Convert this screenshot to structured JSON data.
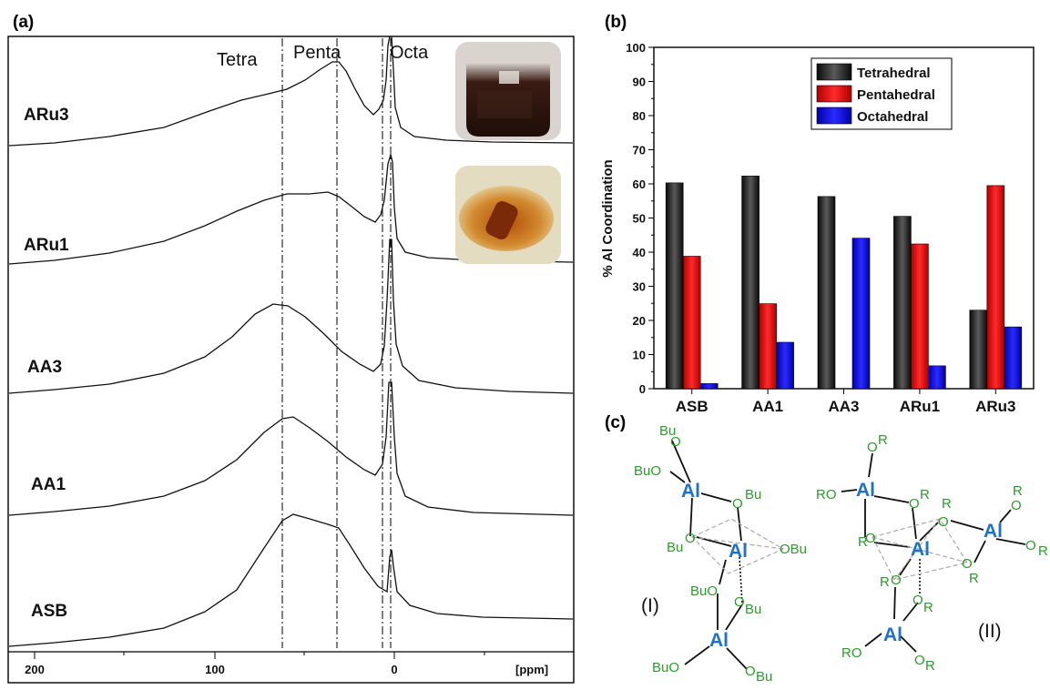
{
  "panel_labels": {
    "a": "(a)",
    "b": "(b)",
    "c": "(c)"
  },
  "nmr": {
    "region_labels": {
      "tetra": "Tetra",
      "penta": "Penta",
      "octa": "Octa"
    },
    "x_ticks": [
      "200",
      "100",
      "0"
    ],
    "x_unit": "[ppm]",
    "spectra": [
      "ARu3",
      "ARu1",
      "AA3",
      "AA1",
      "ASB"
    ]
  },
  "chart_data": {
    "type": "bar",
    "categories": [
      "ASB",
      "AA1",
      "AA3",
      "ARu1",
      "ARu3"
    ],
    "series": [
      {
        "name": "Tetrahedral",
        "values": [
          60.3,
          62.3,
          56.3,
          50.5,
          23.0
        ],
        "color": "#222222"
      },
      {
        "name": "Pentahedral",
        "values": [
          38.8,
          24.9,
          0,
          42.4,
          59.5
        ],
        "color": "#e01010"
      },
      {
        "name": "Octahedral",
        "values": [
          1.5,
          13.6,
          44.1,
          6.7,
          18.1
        ],
        "color": "#1a1ae0"
      }
    ],
    "ylabel": "% Al Coordination",
    "ylim": [
      0,
      100
    ],
    "yticks": [
      "0",
      "10",
      "20",
      "30",
      "40",
      "50",
      "60",
      "70",
      "80",
      "90",
      "100"
    ],
    "legend": "top-right"
  },
  "structures": {
    "metal": "Al",
    "structure_I": {
      "label": "(I)",
      "groups": [
        "Bu",
        "O",
        "BuO",
        "O",
        "Bu",
        "O",
        "Bu",
        "OBu",
        "BuO",
        "O",
        "Bu",
        "BuO",
        "O",
        "Bu"
      ]
    },
    "structure_II": {
      "label": "(II)"
    }
  }
}
